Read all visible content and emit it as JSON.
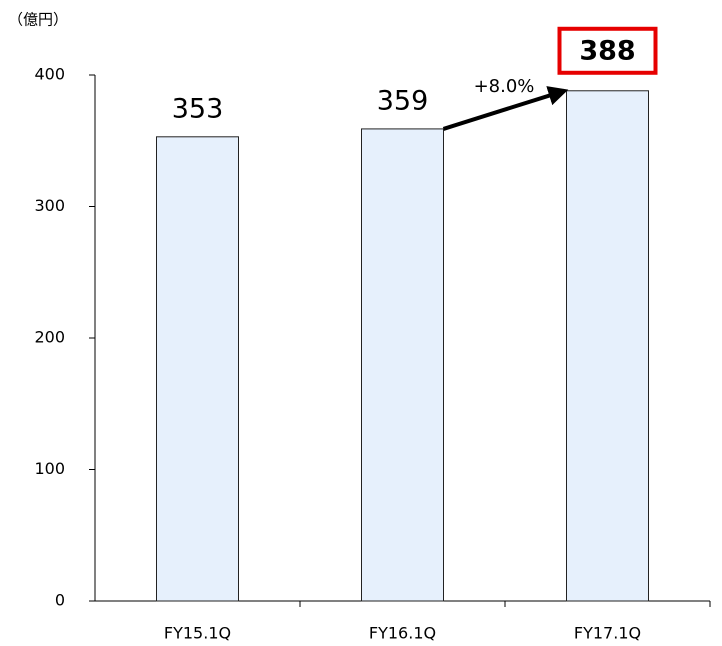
{
  "chart_data": {
    "type": "bar",
    "y_label": "（億円）",
    "categories": [
      "FY15.1Q",
      "FY16.1Q",
      "FY17.1Q"
    ],
    "values": [
      353,
      359,
      388
    ],
    "color": "#e6f0fc",
    "edge_color": "#222222",
    "ylim": [
      0,
      400
    ],
    "yticks": [
      0,
      100,
      200,
      300,
      400
    ],
    "grid": false,
    "highlight": {
      "index": 2,
      "color": "#e60000"
    },
    "annotations": [
      {
        "text": "+8.0%",
        "from": 1,
        "to": 2
      }
    ]
  }
}
